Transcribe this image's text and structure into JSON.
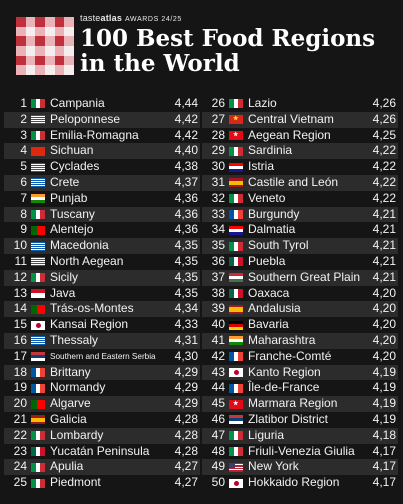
{
  "brand": {
    "name_light": "taste",
    "name_bold": "atlas",
    "awards": "AWARDS 24/25"
  },
  "title": {
    "line1": "100 Best Food Regions",
    "line2": "in the World"
  },
  "colors": {
    "background": "#151515",
    "stripe": "#2c2c2c",
    "logo_red": "#c0303c",
    "logo_pink": "#e9b3b8",
    "logo_white": "#f4eeee"
  },
  "left_column": [
    {
      "rank": "1",
      "name": "Campania",
      "score": "4,44",
      "flag": "italy"
    },
    {
      "rank": "2",
      "name": "Peloponnese",
      "score": "4,42",
      "flag": "greece"
    },
    {
      "rank": "3",
      "name": "Emilia-Romagna",
      "score": "4,42",
      "flag": "italy"
    },
    {
      "rank": "4",
      "name": "Sichuan",
      "score": "4,40",
      "flag": "china"
    },
    {
      "rank": "5",
      "name": "Cyclades",
      "score": "4,38",
      "flag": "greece"
    },
    {
      "rank": "6",
      "name": "Crete",
      "score": "4,37",
      "flag": "greece"
    },
    {
      "rank": "7",
      "name": "Punjab",
      "score": "4,36",
      "flag": "india"
    },
    {
      "rank": "8",
      "name": "Tuscany",
      "score": "4,36",
      "flag": "italy"
    },
    {
      "rank": "9",
      "name": "Alentejo",
      "score": "4,36",
      "flag": "portugal"
    },
    {
      "rank": "10",
      "name": "Macedonia",
      "score": "4,35",
      "flag": "greece"
    },
    {
      "rank": "11",
      "name": "North Aegean",
      "score": "4,35",
      "flag": "greece"
    },
    {
      "rank": "12",
      "name": "Sicily",
      "score": "4,35",
      "flag": "italy"
    },
    {
      "rank": "13",
      "name": "Java",
      "score": "4,35",
      "flag": "indonesia"
    },
    {
      "rank": "14",
      "name": "Trás-os-Montes",
      "score": "4,34",
      "flag": "portugal"
    },
    {
      "rank": "15",
      "name": "Kansai Region",
      "score": "4,33",
      "flag": "japan"
    },
    {
      "rank": "16",
      "name": "Thessaly",
      "score": "4,31",
      "flag": "greece"
    },
    {
      "rank": "17",
      "name": "Southern and Eastern Serbia",
      "score": "4,30",
      "flag": "serbia",
      "small": true
    },
    {
      "rank": "18",
      "name": "Brittany",
      "score": "4,29",
      "flag": "france"
    },
    {
      "rank": "19",
      "name": "Normandy",
      "score": "4,29",
      "flag": "france"
    },
    {
      "rank": "20",
      "name": "Algarve",
      "score": "4,29",
      "flag": "portugal"
    },
    {
      "rank": "21",
      "name": "Galicia",
      "score": "4,28",
      "flag": "spain"
    },
    {
      "rank": "22",
      "name": "Lombardy",
      "score": "4,28",
      "flag": "italy"
    },
    {
      "rank": "23",
      "name": "Yucatán Peninsula",
      "score": "4,28",
      "flag": "mexico"
    },
    {
      "rank": "24",
      "name": "Apulia",
      "score": "4,27",
      "flag": "italy"
    },
    {
      "rank": "25",
      "name": "Piedmont",
      "score": "4,27",
      "flag": "italy"
    }
  ],
  "right_column": [
    {
      "rank": "26",
      "name": "Lazio",
      "score": "4,26",
      "flag": "italy"
    },
    {
      "rank": "27",
      "name": "Central Vietnam",
      "score": "4,26",
      "flag": "vietnam"
    },
    {
      "rank": "28",
      "name": "Aegean Region",
      "score": "4,25",
      "flag": "turkey"
    },
    {
      "rank": "29",
      "name": "Sardinia",
      "score": "4,22",
      "flag": "italy"
    },
    {
      "rank": "30",
      "name": "Istria",
      "score": "4,22",
      "flag": "croatia"
    },
    {
      "rank": "31",
      "name": "Castile and León",
      "score": "4,22",
      "flag": "spain"
    },
    {
      "rank": "32",
      "name": "Veneto",
      "score": "4,22",
      "flag": "italy"
    },
    {
      "rank": "33",
      "name": "Burgundy",
      "score": "4,21",
      "flag": "france"
    },
    {
      "rank": "34",
      "name": "Dalmatia",
      "score": "4,21",
      "flag": "croatia"
    },
    {
      "rank": "35",
      "name": "South Tyrol",
      "score": "4,21",
      "flag": "italy"
    },
    {
      "rank": "36",
      "name": "Puebla",
      "score": "4,21",
      "flag": "mexico"
    },
    {
      "rank": "37",
      "name": "Southern Great Plain",
      "score": "4,21",
      "flag": "hungary"
    },
    {
      "rank": "38",
      "name": "Oaxaca",
      "score": "4,20",
      "flag": "mexico"
    },
    {
      "rank": "39",
      "name": "Andalusia",
      "score": "4,20",
      "flag": "spain"
    },
    {
      "rank": "40",
      "name": "Bavaria",
      "score": "4,20",
      "flag": "germany"
    },
    {
      "rank": "41",
      "name": "Maharashtra",
      "score": "4,20",
      "flag": "india"
    },
    {
      "rank": "42",
      "name": "Franche-Comté",
      "score": "4,20",
      "flag": "france"
    },
    {
      "rank": "43",
      "name": "Kanto Region",
      "score": "4,19",
      "flag": "japan"
    },
    {
      "rank": "44",
      "name": "Île-de-France",
      "score": "4,19",
      "flag": "france"
    },
    {
      "rank": "45",
      "name": "Marmara Region",
      "score": "4,19",
      "flag": "turkey"
    },
    {
      "rank": "46",
      "name": "Zlatibor District",
      "score": "4,19",
      "flag": "serbia"
    },
    {
      "rank": "47",
      "name": "Liguria",
      "score": "4,18",
      "flag": "italy"
    },
    {
      "rank": "48",
      "name": "Friuli-Venezia Giulia",
      "score": "4,17",
      "flag": "italy"
    },
    {
      "rank": "49",
      "name": "New York",
      "score": "4,17",
      "flag": "usa"
    },
    {
      "rank": "50",
      "name": "Hokkaido Region",
      "score": "4,17",
      "flag": "japan"
    }
  ]
}
